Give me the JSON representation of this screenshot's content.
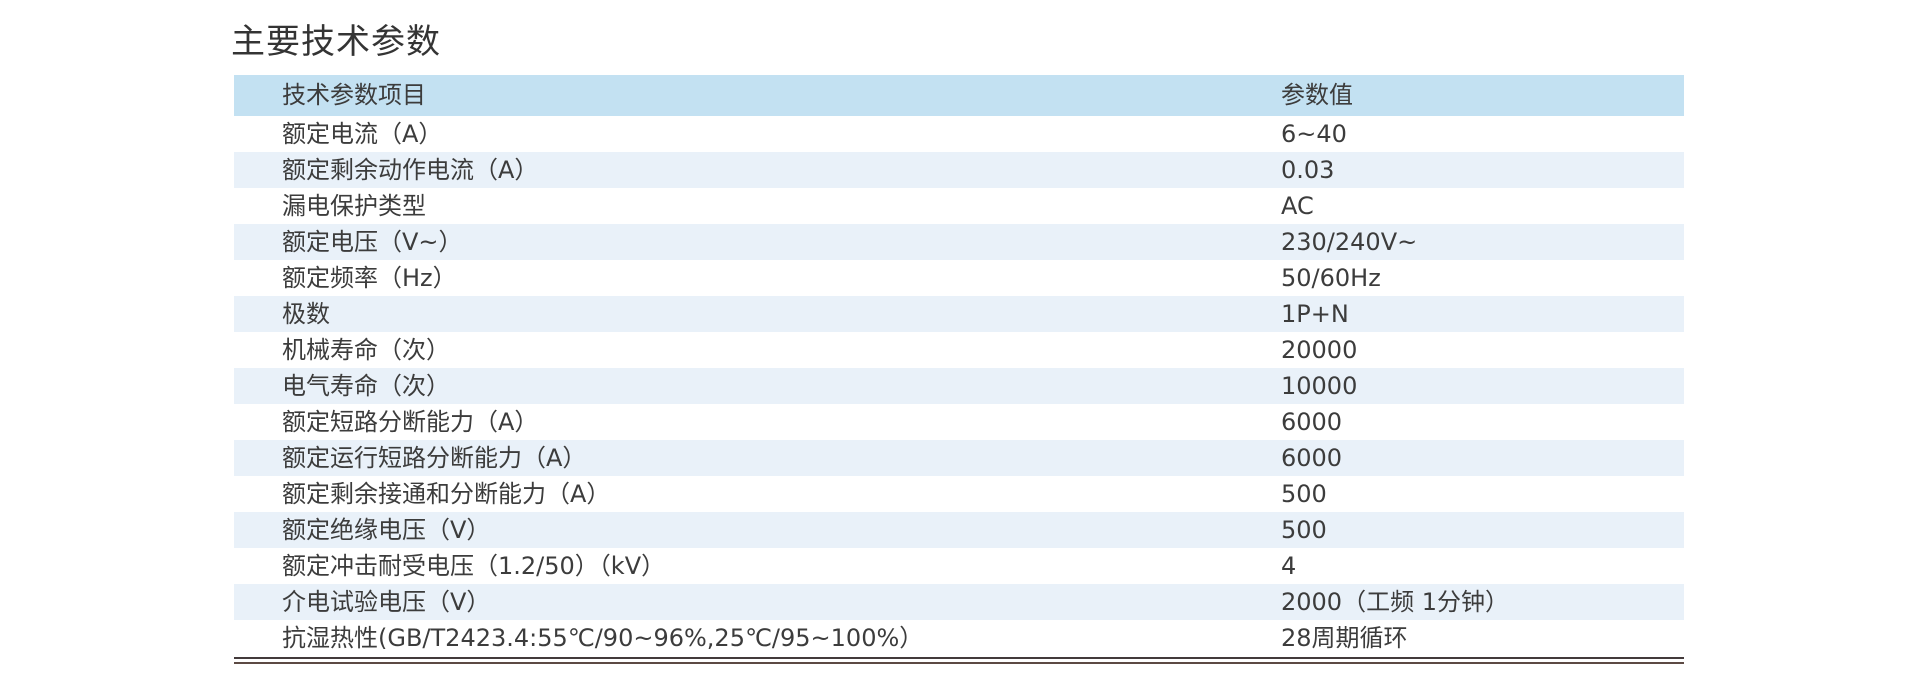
{
  "page": {
    "title": "主要技术参数"
  },
  "table": {
    "header": {
      "item": "技术参数项目",
      "value": "参数值"
    },
    "rows": [
      {
        "item": "额定电流（A）",
        "value": "6~40"
      },
      {
        "item": "额定剩余动作电流（A）",
        "value": "0.03"
      },
      {
        "item": "漏电保护类型",
        "value": "AC"
      },
      {
        "item": "额定电压（V~）",
        "value": "230/240V~"
      },
      {
        "item": "额定频率（Hz）",
        "value": "50/60Hz"
      },
      {
        "item": "极数",
        "value": "1P+N"
      },
      {
        "item": "机械寿命（次）",
        "value": "20000"
      },
      {
        "item": "电气寿命（次）",
        "value": "10000"
      },
      {
        "item": "额定短路分断能力（A）",
        "value": "6000"
      },
      {
        "item": "额定运行短路分断能力（A）",
        "value": "6000"
      },
      {
        "item": "额定剩余接通和分断能力（A）",
        "value": "500"
      },
      {
        "item": "额定绝缘电压（V）",
        "value": "500"
      },
      {
        "item": "额定冲击耐受电压（1.2/50）（kV）",
        "value": "4"
      },
      {
        "item": "介电试验电压（V）",
        "value": "2000（工频 1分钟）"
      },
      {
        "item": "抗湿热性(GB/T2423.4:55℃/90~96%,25℃/95~100%）",
        "value": "28周期循环"
      }
    ]
  },
  "colors": {
    "header_bg": "#c3e1f2",
    "row_alt_bg": "#e9f1f9",
    "text": "#3c3c3c",
    "title": "#343434",
    "rule_top": "#433a3b",
    "rule_bottom": "#5c4a44",
    "page_bg": "#ffffff"
  }
}
